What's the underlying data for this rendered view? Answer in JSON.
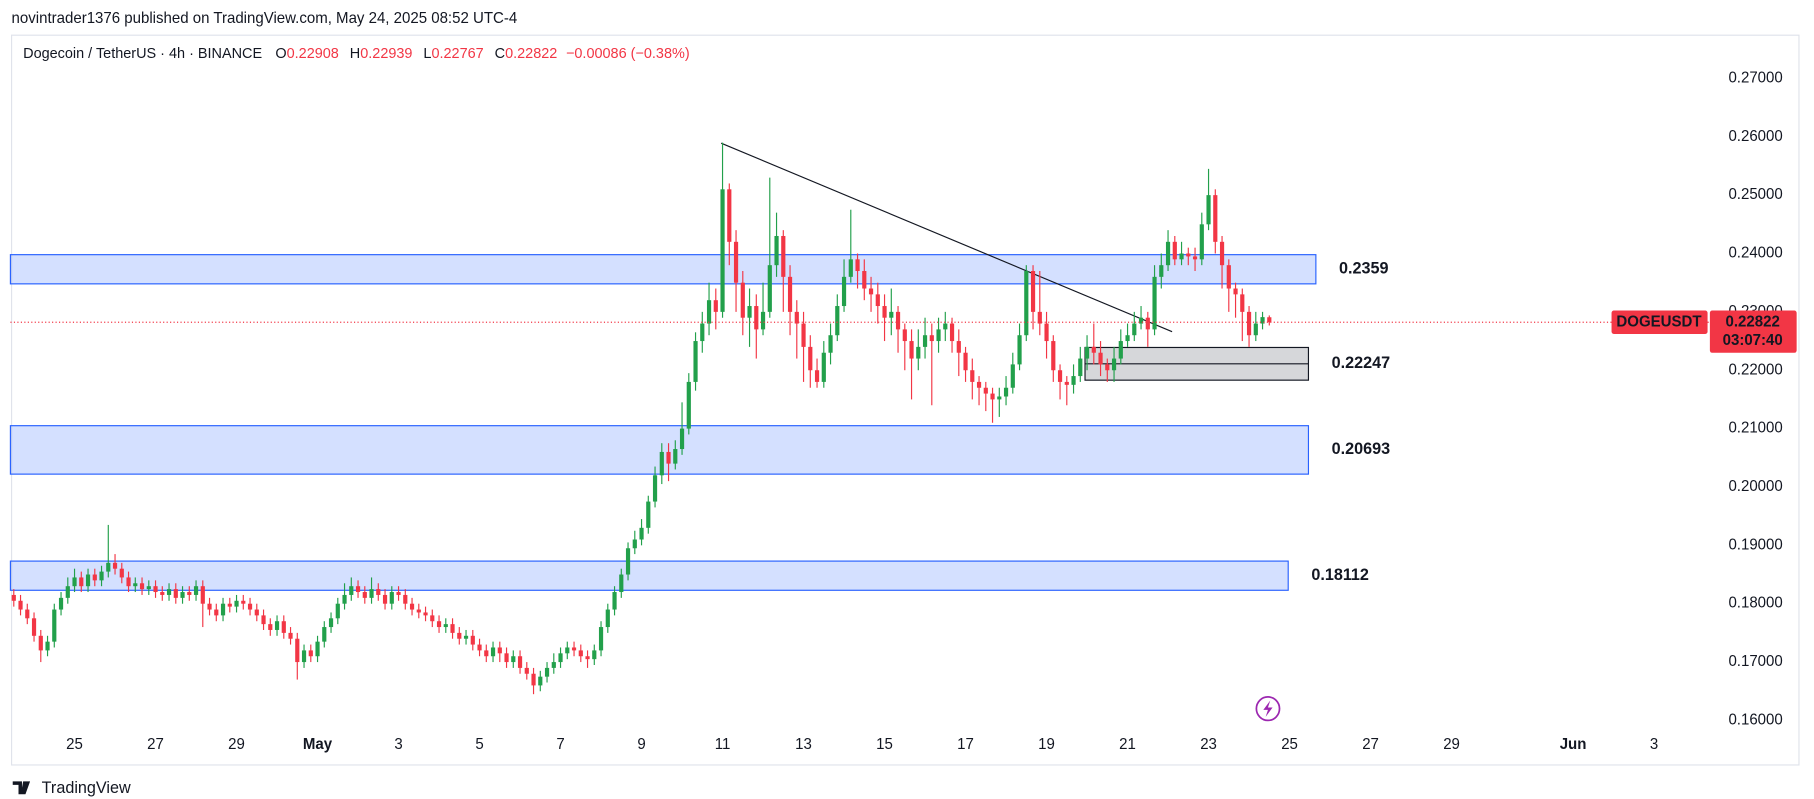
{
  "header": "novintrader1376 published on TradingView.com, May 24, 2025 08:52 UTC-4",
  "footer_brand": "TradingView",
  "chart_data": {
    "type": "candlestick",
    "title": "Dogecoin / TetherUS · 4h · BINANCE",
    "ohlc_labels": [
      "O",
      "H",
      "L",
      "C"
    ],
    "change": "−0.00086 (−0.38%)",
    "symbol": "DOGEUSDT",
    "countdown": "03:07:40",
    "up_color": "#22a04b",
    "down_color": "#f23645",
    "xlim": [
      -0.5,
      247.5
    ],
    "xticks": [
      {
        "value": 9,
        "label": "25"
      },
      {
        "value": 21,
        "label": "27"
      },
      {
        "value": 33,
        "label": "29"
      },
      {
        "value": 45,
        "label": "May"
      },
      {
        "value": 57,
        "label": "3"
      },
      {
        "value": 69,
        "label": "5"
      },
      {
        "value": 81,
        "label": "7"
      },
      {
        "value": 93,
        "label": "9"
      },
      {
        "value": 105,
        "label": "11"
      },
      {
        "value": 117,
        "label": "13"
      },
      {
        "value": 129,
        "label": "15"
      },
      {
        "value": 141,
        "label": "17"
      },
      {
        "value": 153,
        "label": "19"
      },
      {
        "value": 165,
        "label": "21"
      },
      {
        "value": 177,
        "label": "23"
      },
      {
        "value": 189,
        "label": "25"
      },
      {
        "value": 201,
        "label": "27"
      },
      {
        "value": 213,
        "label": "29"
      },
      {
        "value": 231,
        "label": "Jun"
      },
      {
        "value": 243,
        "label": "3"
      }
    ],
    "ylim": [
      0.1584,
      0.277
    ],
    "yticks": [
      {
        "value": 0.27,
        "label": "0.27000"
      },
      {
        "value": 0.26,
        "label": "0.26000"
      },
      {
        "value": 0.25,
        "label": "0.25000"
      },
      {
        "value": 0.24,
        "label": "0.24000"
      },
      {
        "value": 0.23,
        "label": "0.23000"
      },
      {
        "value": 0.22,
        "label": "0.22000"
      },
      {
        "value": 0.21,
        "label": "0.21000"
      },
      {
        "value": 0.2,
        "label": "0.20000"
      },
      {
        "value": 0.19,
        "label": "0.19000"
      },
      {
        "value": 0.18,
        "label": "0.18000"
      },
      {
        "value": 0.17,
        "label": "0.17000"
      },
      {
        "value": 0.16,
        "label": "0.16000"
      }
    ],
    "grid": false,
    "zones": [
      {
        "label": "0.2359",
        "top": 0.2398,
        "bottom": 0.2348,
        "from": -0.5,
        "to": 192.9,
        "color": "#2962ff"
      },
      {
        "label": "0.22247",
        "top": 0.2239,
        "bottom": 0.2183,
        "from": 158.7,
        "to": 191.8,
        "color": "#787b86"
      },
      {
        "label": "0.20693",
        "top": 0.2105,
        "bottom": 0.2022,
        "from": -0.5,
        "to": 191.8,
        "color": "#2962ff"
      },
      {
        "label": "0.18112",
        "top": 0.1873,
        "bottom": 0.1823,
        "from": -0.5,
        "to": 188.8,
        "color": "#2962ff"
      }
    ],
    "trendline": {
      "x": [
        104.8,
        171.6
      ],
      "y": [
        0.2589,
        0.2266
      ]
    },
    "candles": [
      [
        0.1815,
        0.1825,
        0.1795,
        0.1805
      ],
      [
        0.1805,
        0.1815,
        0.178,
        0.179
      ],
      [
        0.179,
        0.18,
        0.1765,
        0.1775
      ],
      [
        0.1775,
        0.1785,
        0.1735,
        0.1745
      ],
      [
        0.1745,
        0.1755,
        0.17,
        0.172
      ],
      [
        0.172,
        0.1745,
        0.171,
        0.1735
      ],
      [
        0.1735,
        0.18,
        0.1725,
        0.179
      ],
      [
        0.179,
        0.182,
        0.178,
        0.181
      ],
      [
        0.181,
        0.1845,
        0.18,
        0.183
      ],
      [
        0.183,
        0.186,
        0.182,
        0.1845
      ],
      [
        0.1845,
        0.1855,
        0.182,
        0.183
      ],
      [
        0.183,
        0.186,
        0.182,
        0.185
      ],
      [
        0.185,
        0.186,
        0.183,
        0.184
      ],
      [
        0.184,
        0.1865,
        0.183,
        0.1855
      ],
      [
        0.1855,
        0.1935,
        0.1845,
        0.187
      ],
      [
        0.187,
        0.1885,
        0.185,
        0.186
      ],
      [
        0.186,
        0.187,
        0.1835,
        0.1845
      ],
      [
        0.1845,
        0.1855,
        0.182,
        0.183
      ],
      [
        0.183,
        0.1845,
        0.182,
        0.1835
      ],
      [
        0.1835,
        0.1845,
        0.1815,
        0.1825
      ],
      [
        0.1825,
        0.184,
        0.1815,
        0.183
      ],
      [
        0.183,
        0.184,
        0.181,
        0.182
      ],
      [
        0.182,
        0.183,
        0.1805,
        0.1815
      ],
      [
        0.1815,
        0.1835,
        0.1805,
        0.1825
      ],
      [
        0.1825,
        0.1835,
        0.18,
        0.181
      ],
      [
        0.181,
        0.183,
        0.18,
        0.182
      ],
      [
        0.182,
        0.183,
        0.1805,
        0.1815
      ],
      [
        0.1815,
        0.184,
        0.1805,
        0.183
      ],
      [
        0.183,
        0.184,
        0.176,
        0.18
      ],
      [
        0.18,
        0.181,
        0.178,
        0.179
      ],
      [
        0.179,
        0.18,
        0.177,
        0.178
      ],
      [
        0.178,
        0.181,
        0.177,
        0.18
      ],
      [
        0.18,
        0.181,
        0.1785,
        0.1795
      ],
      [
        0.1795,
        0.1815,
        0.1785,
        0.1805
      ],
      [
        0.1805,
        0.1815,
        0.179,
        0.18
      ],
      [
        0.18,
        0.181,
        0.178,
        0.179
      ],
      [
        0.179,
        0.18,
        0.177,
        0.178
      ],
      [
        0.178,
        0.179,
        0.1755,
        0.1765
      ],
      [
        0.1765,
        0.1775,
        0.1745,
        0.1755
      ],
      [
        0.1755,
        0.178,
        0.1745,
        0.177
      ],
      [
        0.177,
        0.178,
        0.174,
        0.175
      ],
      [
        0.175,
        0.176,
        0.173,
        0.174
      ],
      [
        0.174,
        0.175,
        0.167,
        0.17
      ],
      [
        0.17,
        0.173,
        0.169,
        0.172
      ],
      [
        0.172,
        0.173,
        0.17,
        0.171
      ],
      [
        0.171,
        0.1745,
        0.17,
        0.1735
      ],
      [
        0.1735,
        0.177,
        0.1725,
        0.176
      ],
      [
        0.176,
        0.1785,
        0.175,
        0.1775
      ],
      [
        0.1775,
        0.181,
        0.1765,
        0.18
      ],
      [
        0.18,
        0.1835,
        0.179,
        0.1815
      ],
      [
        0.1815,
        0.1845,
        0.1805,
        0.183
      ],
      [
        0.183,
        0.184,
        0.181,
        0.182
      ],
      [
        0.182,
        0.183,
        0.18,
        0.181
      ],
      [
        0.181,
        0.1845,
        0.18,
        0.1825
      ],
      [
        0.1825,
        0.1835,
        0.1805,
        0.1815
      ],
      [
        0.1815,
        0.1825,
        0.179,
        0.18
      ],
      [
        0.18,
        0.183,
        0.179,
        0.182
      ],
      [
        0.182,
        0.183,
        0.1805,
        0.1815
      ],
      [
        0.1815,
        0.1825,
        0.179,
        0.18
      ],
      [
        0.18,
        0.181,
        0.178,
        0.179
      ],
      [
        0.179,
        0.18,
        0.1775,
        0.1785
      ],
      [
        0.1785,
        0.1795,
        0.177,
        0.178
      ],
      [
        0.178,
        0.179,
        0.176,
        0.177
      ],
      [
        0.177,
        0.178,
        0.175,
        0.176
      ],
      [
        0.176,
        0.1775,
        0.175,
        0.1765
      ],
      [
        0.1765,
        0.1775,
        0.174,
        0.175
      ],
      [
        0.175,
        0.176,
        0.173,
        0.174
      ],
      [
        0.174,
        0.1755,
        0.173,
        0.1745
      ],
      [
        0.1745,
        0.1755,
        0.172,
        0.173
      ],
      [
        0.173,
        0.174,
        0.171,
        0.172
      ],
      [
        0.172,
        0.173,
        0.17,
        0.171
      ],
      [
        0.171,
        0.1735,
        0.17,
        0.1725
      ],
      [
        0.1725,
        0.1735,
        0.17,
        0.1715
      ],
      [
        0.1715,
        0.1725,
        0.169,
        0.17
      ],
      [
        0.17,
        0.172,
        0.169,
        0.171
      ],
      [
        0.171,
        0.172,
        0.168,
        0.169
      ],
      [
        0.169,
        0.17,
        0.167,
        0.168
      ],
      [
        0.168,
        0.169,
        0.1645,
        0.166
      ],
      [
        0.166,
        0.1685,
        0.165,
        0.1675
      ],
      [
        0.1675,
        0.17,
        0.1665,
        0.169
      ],
      [
        0.169,
        0.1715,
        0.168,
        0.17
      ],
      [
        0.17,
        0.1725,
        0.169,
        0.1715
      ],
      [
        0.1715,
        0.1735,
        0.1705,
        0.1725
      ],
      [
        0.1725,
        0.1735,
        0.171,
        0.172
      ],
      [
        0.172,
        0.173,
        0.17,
        0.171
      ],
      [
        0.171,
        0.172,
        0.169,
        0.1705
      ],
      [
        0.1705,
        0.173,
        0.1695,
        0.172
      ],
      [
        0.172,
        0.177,
        0.171,
        0.176
      ],
      [
        0.176,
        0.18,
        0.175,
        0.179
      ],
      [
        0.179,
        0.183,
        0.178,
        0.182
      ],
      [
        0.182,
        0.186,
        0.181,
        0.185
      ],
      [
        0.185,
        0.1905,
        0.184,
        0.1895
      ],
      [
        0.1895,
        0.1925,
        0.1885,
        0.191
      ],
      [
        0.191,
        0.1945,
        0.19,
        0.193
      ],
      [
        0.193,
        0.1985,
        0.192,
        0.1975
      ],
      [
        0.1975,
        0.2035,
        0.1965,
        0.202
      ],
      [
        0.202,
        0.2075,
        0.2005,
        0.206
      ],
      [
        0.206,
        0.2075,
        0.201,
        0.204
      ],
      [
        0.204,
        0.208,
        0.203,
        0.2065
      ],
      [
        0.2065,
        0.2145,
        0.2055,
        0.21
      ],
      [
        0.21,
        0.2195,
        0.209,
        0.218
      ],
      [
        0.218,
        0.2265,
        0.2165,
        0.225
      ],
      [
        0.225,
        0.23,
        0.223,
        0.228
      ],
      [
        0.228,
        0.235,
        0.226,
        0.232
      ],
      [
        0.232,
        0.234,
        0.227,
        0.23
      ],
      [
        0.23,
        0.259,
        0.229,
        0.251
      ],
      [
        0.251,
        0.252,
        0.238,
        0.242
      ],
      [
        0.242,
        0.244,
        0.23,
        0.235
      ],
      [
        0.235,
        0.237,
        0.226,
        0.229
      ],
      [
        0.229,
        0.234,
        0.224,
        0.231
      ],
      [
        0.231,
        0.233,
        0.222,
        0.227
      ],
      [
        0.227,
        0.235,
        0.226,
        0.23
      ],
      [
        0.23,
        0.253,
        0.229,
        0.238
      ],
      [
        0.238,
        0.247,
        0.236,
        0.243
      ],
      [
        0.243,
        0.244,
        0.23,
        0.236
      ],
      [
        0.236,
        0.238,
        0.226,
        0.23
      ],
      [
        0.23,
        0.232,
        0.222,
        0.228
      ],
      [
        0.228,
        0.23,
        0.218,
        0.224
      ],
      [
        0.224,
        0.226,
        0.217,
        0.22
      ],
      [
        0.22,
        0.222,
        0.217,
        0.218
      ],
      [
        0.218,
        0.225,
        0.217,
        0.223
      ],
      [
        0.223,
        0.228,
        0.221,
        0.226
      ],
      [
        0.226,
        0.233,
        0.225,
        0.231
      ],
      [
        0.231,
        0.239,
        0.23,
        0.236
      ],
      [
        0.236,
        0.2475,
        0.235,
        0.239
      ],
      [
        0.239,
        0.24,
        0.234,
        0.237
      ],
      [
        0.237,
        0.239,
        0.232,
        0.234
      ],
      [
        0.234,
        0.236,
        0.23,
        0.233
      ],
      [
        0.233,
        0.235,
        0.228,
        0.231
      ],
      [
        0.231,
        0.233,
        0.225,
        0.229
      ],
      [
        0.229,
        0.234,
        0.226,
        0.23
      ],
      [
        0.23,
        0.231,
        0.223,
        0.227
      ],
      [
        0.227,
        0.228,
        0.22,
        0.225
      ],
      [
        0.225,
        0.227,
        0.215,
        0.222
      ],
      [
        0.222,
        0.227,
        0.22,
        0.224
      ],
      [
        0.224,
        0.229,
        0.222,
        0.226
      ],
      [
        0.226,
        0.228,
        0.214,
        0.225
      ],
      [
        0.225,
        0.229,
        0.223,
        0.227
      ],
      [
        0.227,
        0.23,
        0.225,
        0.228
      ],
      [
        0.228,
        0.229,
        0.223,
        0.225
      ],
      [
        0.225,
        0.227,
        0.219,
        0.223
      ],
      [
        0.223,
        0.224,
        0.218,
        0.22
      ],
      [
        0.22,
        0.222,
        0.215,
        0.218
      ],
      [
        0.218,
        0.219,
        0.214,
        0.217
      ],
      [
        0.217,
        0.218,
        0.213,
        0.216
      ],
      [
        0.216,
        0.217,
        0.211,
        0.215
      ],
      [
        0.215,
        0.217,
        0.212,
        0.2155
      ],
      [
        0.2155,
        0.219,
        0.214,
        0.217
      ],
      [
        0.217,
        0.223,
        0.216,
        0.221
      ],
      [
        0.221,
        0.228,
        0.22,
        0.226
      ],
      [
        0.226,
        0.238,
        0.225,
        0.237
      ],
      [
        0.237,
        0.238,
        0.227,
        0.23
      ],
      [
        0.23,
        0.237,
        0.226,
        0.228
      ],
      [
        0.228,
        0.23,
        0.222,
        0.225
      ],
      [
        0.225,
        0.226,
        0.218,
        0.22
      ],
      [
        0.22,
        0.221,
        0.215,
        0.218
      ],
      [
        0.218,
        0.219,
        0.214,
        0.2175
      ],
      [
        0.2175,
        0.221,
        0.216,
        0.219
      ],
      [
        0.219,
        0.224,
        0.218,
        0.222
      ],
      [
        0.222,
        0.226,
        0.22,
        0.224
      ],
      [
        0.224,
        0.228,
        0.221,
        0.223
      ],
      [
        0.223,
        0.225,
        0.219,
        0.221
      ],
      [
        0.221,
        0.222,
        0.218,
        0.22
      ],
      [
        0.22,
        0.224,
        0.218,
        0.222
      ],
      [
        0.222,
        0.227,
        0.221,
        0.225
      ],
      [
        0.225,
        0.228,
        0.224,
        0.226
      ],
      [
        0.226,
        0.23,
        0.225,
        0.228
      ],
      [
        0.228,
        0.231,
        0.227,
        0.229
      ],
      [
        0.229,
        0.23,
        0.224,
        0.227
      ],
      [
        0.227,
        0.238,
        0.226,
        0.236
      ],
      [
        0.236,
        0.24,
        0.234,
        0.238
      ],
      [
        0.238,
        0.244,
        0.237,
        0.242
      ],
      [
        0.242,
        0.243,
        0.238,
        0.239
      ],
      [
        0.239,
        0.242,
        0.238,
        0.24
      ],
      [
        0.24,
        0.241,
        0.238,
        0.2395
      ],
      [
        0.2395,
        0.241,
        0.237,
        0.239
      ],
      [
        0.239,
        0.247,
        0.238,
        0.245
      ],
      [
        0.245,
        0.2545,
        0.244,
        0.25
      ],
      [
        0.25,
        0.251,
        0.24,
        0.242
      ],
      [
        0.242,
        0.243,
        0.234,
        0.238
      ],
      [
        0.238,
        0.239,
        0.23,
        0.234
      ],
      [
        0.234,
        0.235,
        0.229,
        0.233
      ],
      [
        0.233,
        0.234,
        0.225,
        0.23
      ],
      [
        0.23,
        0.231,
        0.224,
        0.226
      ],
      [
        0.226,
        0.23,
        0.225,
        0.228
      ],
      [
        0.228,
        0.23,
        0.227,
        0.2291
      ],
      [
        0.22908,
        0.22939,
        0.22767,
        0.22822
      ]
    ]
  }
}
